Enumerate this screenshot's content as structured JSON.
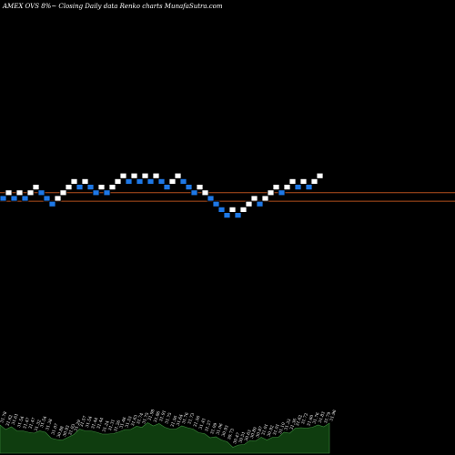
{
  "chart_data": {
    "type": "renko",
    "title": "AMEX  OVS 8%~  Closing Daily data  Renko  charts MunafaSutra.com",
    "colors": {
      "background": "#000000",
      "up_brick": "#ffffff",
      "down_brick": "#1e78e6",
      "brick_edge": "#000000",
      "reference_line": "#b4501e",
      "volume_fill": "#0f3d0f",
      "volume_edge": "#3c8c3c",
      "label_text": "#ffffff"
    },
    "bricks": [
      {
        "dir": "down",
        "level": 0
      },
      {
        "dir": "up",
        "level": 1
      },
      {
        "dir": "down",
        "level": 0
      },
      {
        "dir": "up",
        "level": 1
      },
      {
        "dir": "down",
        "level": 0
      },
      {
        "dir": "up",
        "level": 1
      },
      {
        "dir": "up",
        "level": 2
      },
      {
        "dir": "down",
        "level": 1
      },
      {
        "dir": "down",
        "level": 0
      },
      {
        "dir": "down",
        "level": -1
      },
      {
        "dir": "up",
        "level": 0
      },
      {
        "dir": "up",
        "level": 1
      },
      {
        "dir": "up",
        "level": 2
      },
      {
        "dir": "up",
        "level": 3
      },
      {
        "dir": "down",
        "level": 2
      },
      {
        "dir": "up",
        "level": 3
      },
      {
        "dir": "down",
        "level": 2
      },
      {
        "dir": "down",
        "level": 1
      },
      {
        "dir": "up",
        "level": 2
      },
      {
        "dir": "down",
        "level": 1
      },
      {
        "dir": "up",
        "level": 2
      },
      {
        "dir": "up",
        "level": 3
      },
      {
        "dir": "up",
        "level": 4
      },
      {
        "dir": "down",
        "level": 3
      },
      {
        "dir": "up",
        "level": 4
      },
      {
        "dir": "down",
        "level": 3
      },
      {
        "dir": "up",
        "level": 4
      },
      {
        "dir": "down",
        "level": 3
      },
      {
        "dir": "up",
        "level": 4
      },
      {
        "dir": "down",
        "level": 3
      },
      {
        "dir": "down",
        "level": 2
      },
      {
        "dir": "up",
        "level": 3
      },
      {
        "dir": "up",
        "level": 4
      },
      {
        "dir": "down",
        "level": 3
      },
      {
        "dir": "down",
        "level": 2
      },
      {
        "dir": "down",
        "level": 1
      },
      {
        "dir": "up",
        "level": 2
      },
      {
        "dir": "up",
        "level": 1
      },
      {
        "dir": "down",
        "level": 0
      },
      {
        "dir": "down",
        "level": -1
      },
      {
        "dir": "down",
        "level": -2
      },
      {
        "dir": "down",
        "level": -3
      },
      {
        "dir": "up",
        "level": -2
      },
      {
        "dir": "down",
        "level": -3
      },
      {
        "dir": "up",
        "level": -2
      },
      {
        "dir": "up",
        "level": -1
      },
      {
        "dir": "up",
        "level": 0
      },
      {
        "dir": "down",
        "level": -1
      },
      {
        "dir": "up",
        "level": 0
      },
      {
        "dir": "up",
        "level": 1
      },
      {
        "dir": "up",
        "level": 2
      },
      {
        "dir": "down",
        "level": 1
      },
      {
        "dir": "up",
        "level": 2
      },
      {
        "dir": "up",
        "level": 3
      },
      {
        "dir": "down",
        "level": 2
      },
      {
        "dir": "up",
        "level": 3
      },
      {
        "dir": "down",
        "level": 2
      },
      {
        "dir": "up",
        "level": 3
      },
      {
        "dir": "up",
        "level": 4
      }
    ],
    "reference_levels": [
      1,
      -0.5
    ],
    "volume_labels": [
      "31.78",
      "31.62",
      "31.61",
      "31.54",
      "31.47",
      "31.47",
      "31.32",
      "31.54",
      "31.38",
      "31.07",
      "30.88",
      "30.93",
      "31.03",
      "31.29",
      "31.57",
      "31.54",
      "31.44",
      "31.44",
      "31.24",
      "31.31",
      "31.26",
      "31.46",
      "31.53",
      "31.63",
      "31.74",
      "31.75",
      "31.98",
      "31.86",
      "31.91",
      "31.75",
      "31.56",
      "31.64",
      "31.76",
      "31.73",
      "31.56",
      "31.41",
      "31.27",
      "31.09",
      "31.06",
      "30.93",
      "30.73",
      "30.47",
      "30.51",
      "30.63",
      "30.80",
      "30.87",
      "31.01",
      "30.92",
      "31.01",
      "31.10",
      "31.33",
      "31.36",
      "31.62",
      "31.72",
      "31.60",
      "31.76",
      "31.83",
      "31.79",
      "31.96"
    ],
    "volume_levels": [
      0.62,
      0.55,
      0.58,
      0.52,
      0.49,
      0.49,
      0.44,
      0.52,
      0.46,
      0.36,
      0.3,
      0.32,
      0.35,
      0.44,
      0.53,
      0.52,
      0.49,
      0.49,
      0.42,
      0.45,
      0.43,
      0.5,
      0.52,
      0.55,
      0.59,
      0.6,
      0.67,
      0.63,
      0.65,
      0.6,
      0.53,
      0.56,
      0.6,
      0.59,
      0.53,
      0.48,
      0.43,
      0.37,
      0.36,
      0.32,
      0.25,
      0.16,
      0.18,
      0.22,
      0.28,
      0.3,
      0.35,
      0.32,
      0.35,
      0.38,
      0.46,
      0.47,
      0.55,
      0.59,
      0.55,
      0.6,
      0.62,
      0.61,
      0.66
    ]
  }
}
